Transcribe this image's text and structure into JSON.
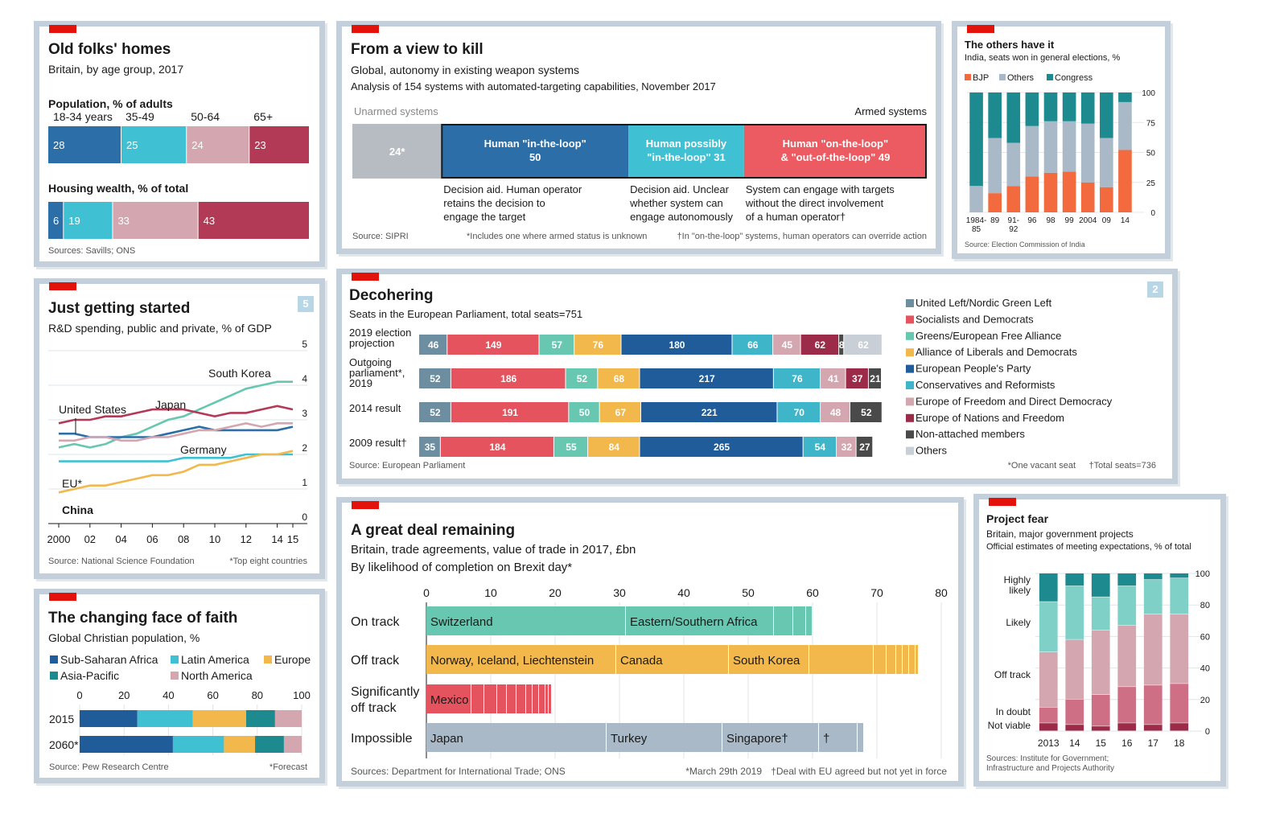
{
  "colors": {
    "unarmed": "#b7bcc3",
    "in_loop": "#2b6ea8",
    "possibly": "#3fc1d3",
    "on_loop": "#ec5b62",
    "bjp": "#f26a3d",
    "others": "#aab9c7",
    "congress": "#1d8a8f"
  },
  "p1": {
    "title": "Old folks' homes",
    "subtitle": "Britain, by age group, 2017",
    "source": "Sources: Savills; ONS",
    "chart_data": {
      "type": "bar",
      "groups": [
        "18-34 years",
        "35-49",
        "50-64",
        "65+"
      ],
      "colors": [
        "#2b6ea8",
        "#3fc1d3",
        "#d4a6b0",
        "#b33a56"
      ],
      "rows": [
        {
          "title": "Population, % of adults",
          "values": [
            28,
            25,
            24,
            23
          ]
        },
        {
          "title": "Housing wealth, % of total",
          "values": [
            6,
            19,
            33,
            43
          ]
        }
      ]
    }
  },
  "p2": {
    "title": "From a view to kill",
    "subtitle": "Global, autonomy in existing weapon systems",
    "subtitle2": "Analysis of 154 systems with automated-targeting capabilities, November 2017",
    "unarmed_label": "Unarmed systems",
    "armed_label": "Armed systems",
    "source": "Source: SIPRI",
    "note1": "*Includes one where armed status is unknown",
    "note2": "†In \"on-the-loop\" systems, human operators can override action",
    "chart_data": {
      "type": "bar",
      "segments": [
        {
          "label": "24*",
          "value": 24,
          "color": "#b7bcc3"
        },
        {
          "label": "Human \"in-the-loop\"",
          "label2": "50",
          "value": 50,
          "color": "#2b6ea8"
        },
        {
          "label": "Human possibly",
          "label2": "\"in-the-loop\" 31",
          "value": 31,
          "color": "#3fc1d3"
        },
        {
          "label": "Human \"on-the-loop\"",
          "label2": "& \"out-of-the-loop\" 49",
          "value": 49,
          "color": "#ec5b62"
        }
      ],
      "descriptions": [
        [
          "Decision aid. Human operator",
          "retains the decision to",
          "engage the target"
        ],
        [
          "Decision aid. Unclear",
          "whether system can",
          "engage autonomously"
        ],
        [
          "System can engage with targets",
          "without the direct involvement",
          "of a human operator†"
        ]
      ]
    }
  },
  "p3": {
    "title": "The others have it",
    "subtitle": "India, seats won in general elections, %",
    "source": "Source: Election Commission of India",
    "chart_data": {
      "type": "bar",
      "legend": [
        "BJP",
        "Others",
        "Congress"
      ],
      "categories": [
        "1984-85",
        "89",
        "91-92",
        "96",
        "98",
        "99",
        "2004",
        "09",
        "14"
      ],
      "x_tick_labels": [
        "1984-",
        "85",
        "89",
        "91-",
        "92",
        "96",
        "98",
        "99",
        "2004",
        "09",
        "14"
      ],
      "bjp": [
        0,
        16,
        22,
        30,
        33,
        34,
        25,
        21,
        52
      ],
      "others": [
        22,
        46,
        36,
        42,
        43,
        42,
        49,
        41,
        40
      ],
      "congress": [
        78,
        38,
        42,
        28,
        24,
        24,
        26,
        38,
        8
      ],
      "ylim": [
        0,
        100
      ],
      "yticks": [
        0,
        25,
        50,
        75,
        100
      ]
    }
  },
  "p4": {
    "title": "Just getting started",
    "subtitle": "R&D spending, public and private, % of GDP",
    "badge": "5",
    "source": "Source: National Science Foundation",
    "note": "*Top eight countries",
    "chart_data": {
      "type": "line",
      "x": [
        2000,
        2001,
        2002,
        2003,
        2004,
        2005,
        2006,
        2007,
        2008,
        2009,
        2010,
        2011,
        2012,
        2013,
        2014,
        2015
      ],
      "x_tick_labels": [
        "2000",
        "02",
        "04",
        "06",
        "08",
        "10",
        "12",
        "14",
        "15"
      ],
      "x_tick_values": [
        2000,
        2002,
        2004,
        2006,
        2008,
        2010,
        2012,
        2014,
        2015
      ],
      "ylim": [
        0,
        5
      ],
      "yticks": [
        0,
        1,
        2,
        3,
        4,
        5
      ],
      "series": [
        {
          "name": "South Korea",
          "color": "#67c7b0",
          "values": [
            2.2,
            2.3,
            2.2,
            2.3,
            2.5,
            2.6,
            2.8,
            3.0,
            3.1,
            3.3,
            3.5,
            3.7,
            3.9,
            4.0,
            4.1,
            4.1
          ]
        },
        {
          "name": "Japan",
          "color": "#b33a56",
          "values": [
            2.9,
            3.0,
            3.0,
            3.1,
            3.1,
            3.2,
            3.3,
            3.3,
            3.3,
            3.2,
            3.1,
            3.2,
            3.2,
            3.3,
            3.4,
            3.3
          ]
        },
        {
          "name": "United States",
          "color": "#2b6ea8",
          "values": [
            2.6,
            2.6,
            2.5,
            2.5,
            2.5,
            2.5,
            2.5,
            2.6,
            2.7,
            2.8,
            2.7,
            2.7,
            2.7,
            2.7,
            2.7,
            2.8
          ]
        },
        {
          "name": "Germany",
          "color": "#d4a6b0",
          "values": [
            2.4,
            2.4,
            2.5,
            2.5,
            2.4,
            2.4,
            2.5,
            2.5,
            2.6,
            2.7,
            2.7,
            2.8,
            2.9,
            2.8,
            2.9,
            2.9
          ]
        },
        {
          "name": "EU*",
          "color": "#3fc1d3",
          "values": [
            1.8,
            1.8,
            1.8,
            1.8,
            1.8,
            1.8,
            1.8,
            1.8,
            1.9,
            1.9,
            1.9,
            1.9,
            2.0,
            2.0,
            2.0,
            2.0
          ]
        },
        {
          "name": "China",
          "color": "#f2b84b",
          "values": [
            0.9,
            1.0,
            1.1,
            1.1,
            1.2,
            1.3,
            1.4,
            1.4,
            1.5,
            1.7,
            1.7,
            1.8,
            1.9,
            2.0,
            2.0,
            2.1
          ]
        }
      ]
    }
  },
  "p5": {
    "title": "Decohering",
    "subtitle": "Seats in the European Parliament, total seats=751",
    "badge": "2",
    "source": "Source: European Parliament",
    "note1": "*One vacant seat",
    "note2": "†Total seats=736",
    "chart_data": {
      "type": "bar",
      "parties": [
        {
          "name": "United Left/Nordic Green Left",
          "color": "#6c8ea0"
        },
        {
          "name": "Socialists and Democrats",
          "color": "#e5545e"
        },
        {
          "name": "Greens/European Free Alliance",
          "color": "#67c7b0"
        },
        {
          "name": "Alliance of Liberals and Democrats",
          "color": "#f2b84b"
        },
        {
          "name": "European People's Party",
          "color": "#1f5c99"
        },
        {
          "name": "Conservatives and Reformists",
          "color": "#3fb5c9"
        },
        {
          "name": "Europe of Freedom and Direct Democracy",
          "color": "#d4a6b0"
        },
        {
          "name": "Europe of Nations and Freedom",
          "color": "#9c2b4a"
        },
        {
          "name": "Non-attached members",
          "color": "#4a4a4a"
        },
        {
          "name": "Others",
          "color": "#c8cfd6"
        }
      ],
      "rows": [
        {
          "label": [
            "2019 election",
            "projection"
          ],
          "values": [
            46,
            149,
            57,
            76,
            180,
            66,
            45,
            62,
            8,
            62
          ]
        },
        {
          "label": [
            "Outgoing",
            "parliament*,",
            "2019"
          ],
          "values": [
            52,
            186,
            52,
            68,
            217,
            76,
            41,
            37,
            21,
            0
          ]
        },
        {
          "label": [
            "2014 result"
          ],
          "values": [
            52,
            191,
            50,
            67,
            221,
            70,
            48,
            0,
            52,
            0
          ]
        },
        {
          "label": [
            "2009 result†"
          ],
          "values": [
            35,
            184,
            55,
            84,
            265,
            54,
            32,
            0,
            27,
            0
          ]
        }
      ]
    }
  },
  "p6": {
    "title": "The changing face of faith",
    "subtitle": "Global Christian population, %",
    "source": "Source: Pew Research Centre",
    "note": "*Forecast",
    "chart_data": {
      "type": "bar",
      "legend": [
        {
          "name": "Sub-Saharan Africa",
          "color": "#1f5c99"
        },
        {
          "name": "Latin America",
          "color": "#3fc1d3"
        },
        {
          "name": "Europe",
          "color": "#f2b84b"
        },
        {
          "name": "Asia-Pacific",
          "color": "#1d8a8f"
        },
        {
          "name": "North America",
          "color": "#d4a6b0"
        }
      ],
      "xticks": [
        0,
        20,
        40,
        60,
        80,
        100
      ],
      "rows": [
        {
          "label": "2015",
          "values": [
            26,
            25,
            24,
            13,
            12
          ]
        },
        {
          "label": "2060*",
          "values": [
            42,
            23,
            14,
            13,
            8
          ]
        }
      ]
    }
  },
  "p7": {
    "title": "A great deal remaining",
    "subtitle": "Britain, trade agreements, value of trade in 2017, £bn",
    "subtitle2": "By likelihood of completion on Brexit day*",
    "source": "Sources: Department for International Trade; ONS",
    "note1": "*March 29th 2019",
    "note2": "†Deal with EU agreed but not yet in force",
    "chart_data": {
      "type": "bar",
      "xticks": [
        0,
        10,
        20,
        30,
        40,
        50,
        60,
        70,
        80
      ],
      "rows": [
        {
          "label": [
            "On track"
          ],
          "color": "#67c7b0",
          "total": 60,
          "labeled": [
            {
              "name": "Switzerland",
              "value": 31
            },
            {
              "name": "Eastern/Southern Africa",
              "value": 23
            }
          ],
          "small": [
            3,
            2,
            1
          ]
        },
        {
          "label": [
            "Off track"
          ],
          "color": "#f2b84b",
          "total": 76.5,
          "labeled": [
            {
              "name": "Norway, Iceland, Liechtenstein",
              "value": 29.5
            },
            {
              "name": "Canada",
              "value": 17.5
            },
            {
              "name": "South Korea",
              "value": 12.5
            }
          ],
          "small": [
            10,
            2,
            1.5,
            1,
            1,
            1,
            0.5
          ]
        },
        {
          "label": [
            "Significantly",
            "off track"
          ],
          "color": "#e5545e",
          "total": 18.5,
          "labeled": [
            {
              "name": "Mexico",
              "value": 7
            }
          ],
          "small": [
            2,
            2,
            1.5,
            1.5,
            1.5,
            1,
            1,
            1,
            0.5,
            0.5
          ]
        },
        {
          "label": [
            "Impossible"
          ],
          "color": "#aab9c7",
          "total": 68,
          "labeled": [
            {
              "name": "Japan",
              "value": 28
            },
            {
              "name": "Turkey",
              "value": 18
            },
            {
              "name": "Singapore†",
              "value": 15
            },
            {
              "name": "†",
              "value": 6
            }
          ],
          "small": [
            1
          ]
        }
      ]
    }
  },
  "p8": {
    "title": "Project fear",
    "subtitle": "Britain, major government projects",
    "subtitle2": "Official estimates of meeting expectations, % of total",
    "source1": "Sources: Institute for Government;",
    "source2": "Infrastructure and Projects Authority",
    "chart_data": {
      "type": "bar",
      "categories": [
        "2013",
        "14",
        "15",
        "16",
        "17",
        "18"
      ],
      "ylim": [
        0,
        100
      ],
      "yticks": [
        0,
        20,
        40,
        60,
        80,
        100
      ],
      "stack_labels": [
        "Not viable",
        "In doubt",
        "Off track",
        "Likely",
        "Highly likely"
      ],
      "stack_label_lines": [
        [
          "Not viable"
        ],
        [
          "In doubt"
        ],
        [
          "Off track"
        ],
        [
          "Likely"
        ],
        [
          "Highly",
          "likely"
        ]
      ],
      "colors": [
        "#9c2b4a",
        "#cf6f86",
        "#d4a6b0",
        "#7fd0c7",
        "#1d8a8f"
      ],
      "stacks": [
        [
          5,
          10,
          35,
          32,
          18
        ],
        [
          4,
          16,
          38,
          34,
          8
        ],
        [
          3,
          20,
          41,
          21,
          15
        ],
        [
          5,
          23,
          39,
          25,
          8
        ],
        [
          4,
          25,
          45,
          22,
          4
        ],
        [
          5,
          25,
          44,
          23,
          3
        ]
      ]
    }
  }
}
